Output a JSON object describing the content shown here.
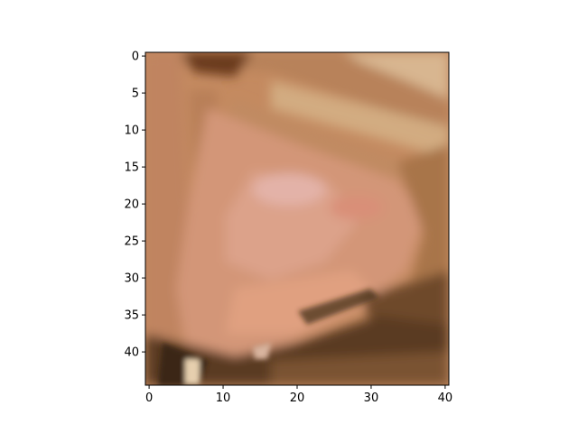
{
  "image": {
    "description": "pixelated close-up crop of an ear with blonde/brown hair",
    "palette": {
      "skin": "#c98a64",
      "skin_light": "#dba080",
      "skin_pink": "#d79a8a",
      "hair_light": "#d6b48a",
      "hair_mid": "#b07a4e",
      "hair_dark": "#6a3a1e",
      "shadow": "#3a2616"
    }
  },
  "axes": {
    "x_ticks": [
      "0",
      "10",
      "20",
      "30",
      "40"
    ],
    "y_ticks": [
      "0",
      "5",
      "10",
      "15",
      "20",
      "25",
      "30",
      "35",
      "40"
    ],
    "xlim": [
      -0.5,
      40.5
    ],
    "ylim": [
      44.5,
      -0.5
    ]
  }
}
